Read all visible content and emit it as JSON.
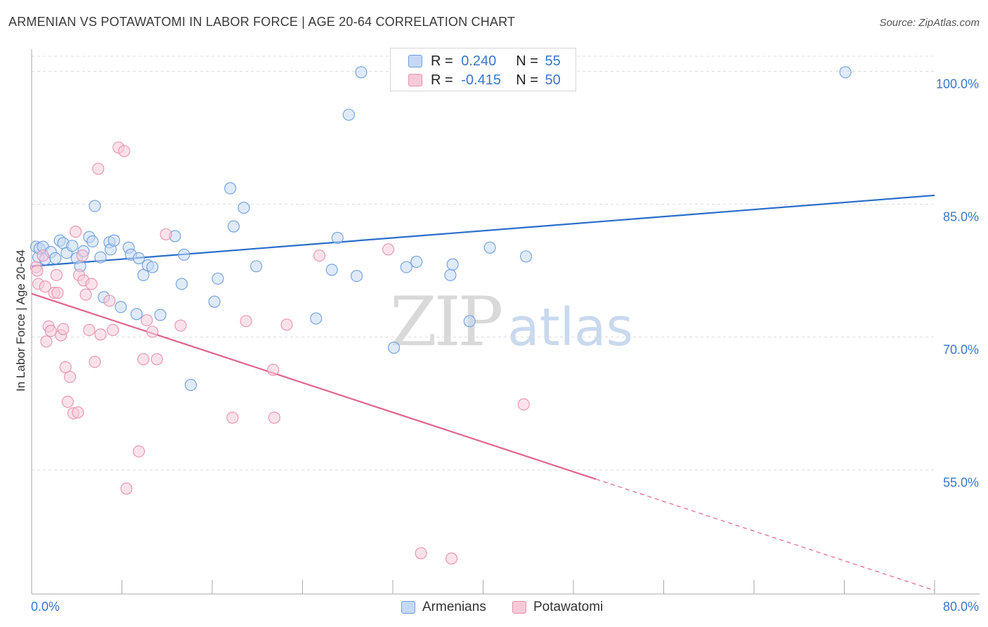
{
  "title": "ARMENIAN VS POTAWATOMI IN LABOR FORCE | AGE 20-64 CORRELATION CHART",
  "source": "Source: ZipAtlas.com",
  "watermark": {
    "zip": "ZIP",
    "atlas": "atlas"
  },
  "legend": {
    "rows": [
      {
        "r_label": "R =",
        "r_value": "0.240",
        "n_label": "N =",
        "n_value": "55"
      },
      {
        "r_label": "R =",
        "r_value": "-0.415",
        "n_label": "N =",
        "n_value": "50"
      }
    ]
  },
  "colors": {
    "blue_fill": "#c5d9f5",
    "blue_stroke": "#6f9fdc",
    "blue_line": "#2a6ecb",
    "pink_fill": "#f8cad8",
    "pink_stroke": "#e991ad",
    "pink_line": "#e0648e",
    "grid": "#dddddd",
    "tick_label": "#3a77c8"
  },
  "chart_data": {
    "type": "scatter",
    "title": "ARMENIAN VS POTAWATOMI IN LABOR FORCE | AGE 20-64 CORRELATION CHART",
    "xlabel": "",
    "ylabel": "In Labor Force | Age 20-64",
    "xlim": [
      0,
      80
    ],
    "ylim": [
      41,
      102.5
    ],
    "x_tick_labels": [
      {
        "value": 0,
        "label": "0.0%"
      },
      {
        "value": 80,
        "label": "80.0%"
      }
    ],
    "y_tick_labels": [
      {
        "value": 55,
        "label": "55.0%"
      },
      {
        "value": 70,
        "label": "70.0%"
      },
      {
        "value": 85,
        "label": "85.0%"
      },
      {
        "value": 100,
        "label": "100.0%"
      }
    ],
    "grid": true,
    "legend_position": "top-center",
    "series": [
      {
        "name": "Armenians",
        "color": "#6f9fdc",
        "trend": {
          "x": [
            0,
            80
          ],
          "y": [
            78.0,
            86.0
          ],
          "dashed_from": null
        },
        "points": [
          [
            0.4,
            80.2
          ],
          [
            0.6,
            79.0
          ],
          [
            0.7,
            80.0
          ],
          [
            1.0,
            80.2
          ],
          [
            1.2,
            78.8
          ],
          [
            1.7,
            79.6
          ],
          [
            2.1,
            78.9
          ],
          [
            2.5,
            80.9
          ],
          [
            2.8,
            80.6
          ],
          [
            3.1,
            79.5
          ],
          [
            3.6,
            80.3
          ],
          [
            4.0,
            78.9
          ],
          [
            4.3,
            78.0
          ],
          [
            4.6,
            79.7
          ],
          [
            5.1,
            81.3
          ],
          [
            5.4,
            80.8
          ],
          [
            5.6,
            84.8
          ],
          [
            6.1,
            79.0
          ],
          [
            6.4,
            74.5
          ],
          [
            6.9,
            80.7
          ],
          [
            7.0,
            79.9
          ],
          [
            7.3,
            80.9
          ],
          [
            7.9,
            73.4
          ],
          [
            8.6,
            80.1
          ],
          [
            8.8,
            79.3
          ],
          [
            9.3,
            72.6
          ],
          [
            9.5,
            78.9
          ],
          [
            9.9,
            77.0
          ],
          [
            10.3,
            78.1
          ],
          [
            10.7,
            77.9
          ],
          [
            11.4,
            72.5
          ],
          [
            12.7,
            81.4
          ],
          [
            13.3,
            76.0
          ],
          [
            13.5,
            79.3
          ],
          [
            14.1,
            64.6
          ],
          [
            16.5,
            76.6
          ],
          [
            16.2,
            74.0
          ],
          [
            17.6,
            86.8
          ],
          [
            17.9,
            82.5
          ],
          [
            18.8,
            84.6
          ],
          [
            19.9,
            78.0
          ],
          [
            25.2,
            72.1
          ],
          [
            26.6,
            77.6
          ],
          [
            27.1,
            81.2
          ],
          [
            28.1,
            95.1
          ],
          [
            28.8,
            76.9
          ],
          [
            29.2,
            99.9
          ],
          [
            32.1,
            68.8
          ],
          [
            33.2,
            77.9
          ],
          [
            34.1,
            78.5
          ],
          [
            37.1,
            77.0
          ],
          [
            37.3,
            78.2
          ],
          [
            38.8,
            71.8
          ],
          [
            40.6,
            80.1
          ],
          [
            43.8,
            79.1
          ],
          [
            72.1,
            99.9
          ]
        ]
      },
      {
        "name": "Potawatomi",
        "color": "#e991ad",
        "trend": {
          "x": [
            0,
            80
          ],
          "y": [
            74.9,
            41.4
          ],
          "dashed_from": 50
        },
        "points": [
          [
            0.4,
            77.9
          ],
          [
            0.5,
            77.5
          ],
          [
            0.6,
            76.0
          ],
          [
            1.0,
            79.2
          ],
          [
            1.2,
            75.7
          ],
          [
            1.3,
            69.5
          ],
          [
            1.5,
            71.2
          ],
          [
            1.7,
            70.7
          ],
          [
            2.0,
            75.0
          ],
          [
            2.2,
            77.0
          ],
          [
            2.3,
            75.0
          ],
          [
            2.6,
            70.2
          ],
          [
            2.8,
            70.9
          ],
          [
            3.0,
            66.6
          ],
          [
            3.2,
            62.7
          ],
          [
            3.4,
            65.5
          ],
          [
            3.7,
            61.4
          ],
          [
            3.9,
            81.9
          ],
          [
            4.1,
            61.5
          ],
          [
            4.2,
            77.0
          ],
          [
            4.5,
            79.2
          ],
          [
            4.6,
            76.4
          ],
          [
            4.8,
            74.8
          ],
          [
            5.1,
            70.8
          ],
          [
            5.3,
            76.0
          ],
          [
            5.6,
            67.2
          ],
          [
            5.9,
            89.0
          ],
          [
            6.1,
            70.3
          ],
          [
            6.9,
            74.1
          ],
          [
            7.2,
            70.8
          ],
          [
            7.7,
            91.4
          ],
          [
            8.2,
            91.0
          ],
          [
            8.4,
            52.9
          ],
          [
            9.5,
            57.1
          ],
          [
            9.9,
            67.5
          ],
          [
            10.2,
            71.9
          ],
          [
            10.7,
            70.6
          ],
          [
            11.1,
            67.5
          ],
          [
            11.9,
            81.6
          ],
          [
            13.2,
            71.3
          ],
          [
            17.8,
            60.9
          ],
          [
            19.0,
            71.8
          ],
          [
            21.4,
            66.3
          ],
          [
            21.5,
            60.9
          ],
          [
            22.6,
            71.4
          ],
          [
            25.5,
            79.2
          ],
          [
            31.6,
            79.9
          ],
          [
            34.5,
            45.6
          ],
          [
            37.2,
            45.0
          ],
          [
            43.6,
            62.4
          ]
        ]
      }
    ]
  },
  "bottom_legend": {
    "armenians": "Armenians",
    "potawatomi": "Potawatomi"
  }
}
